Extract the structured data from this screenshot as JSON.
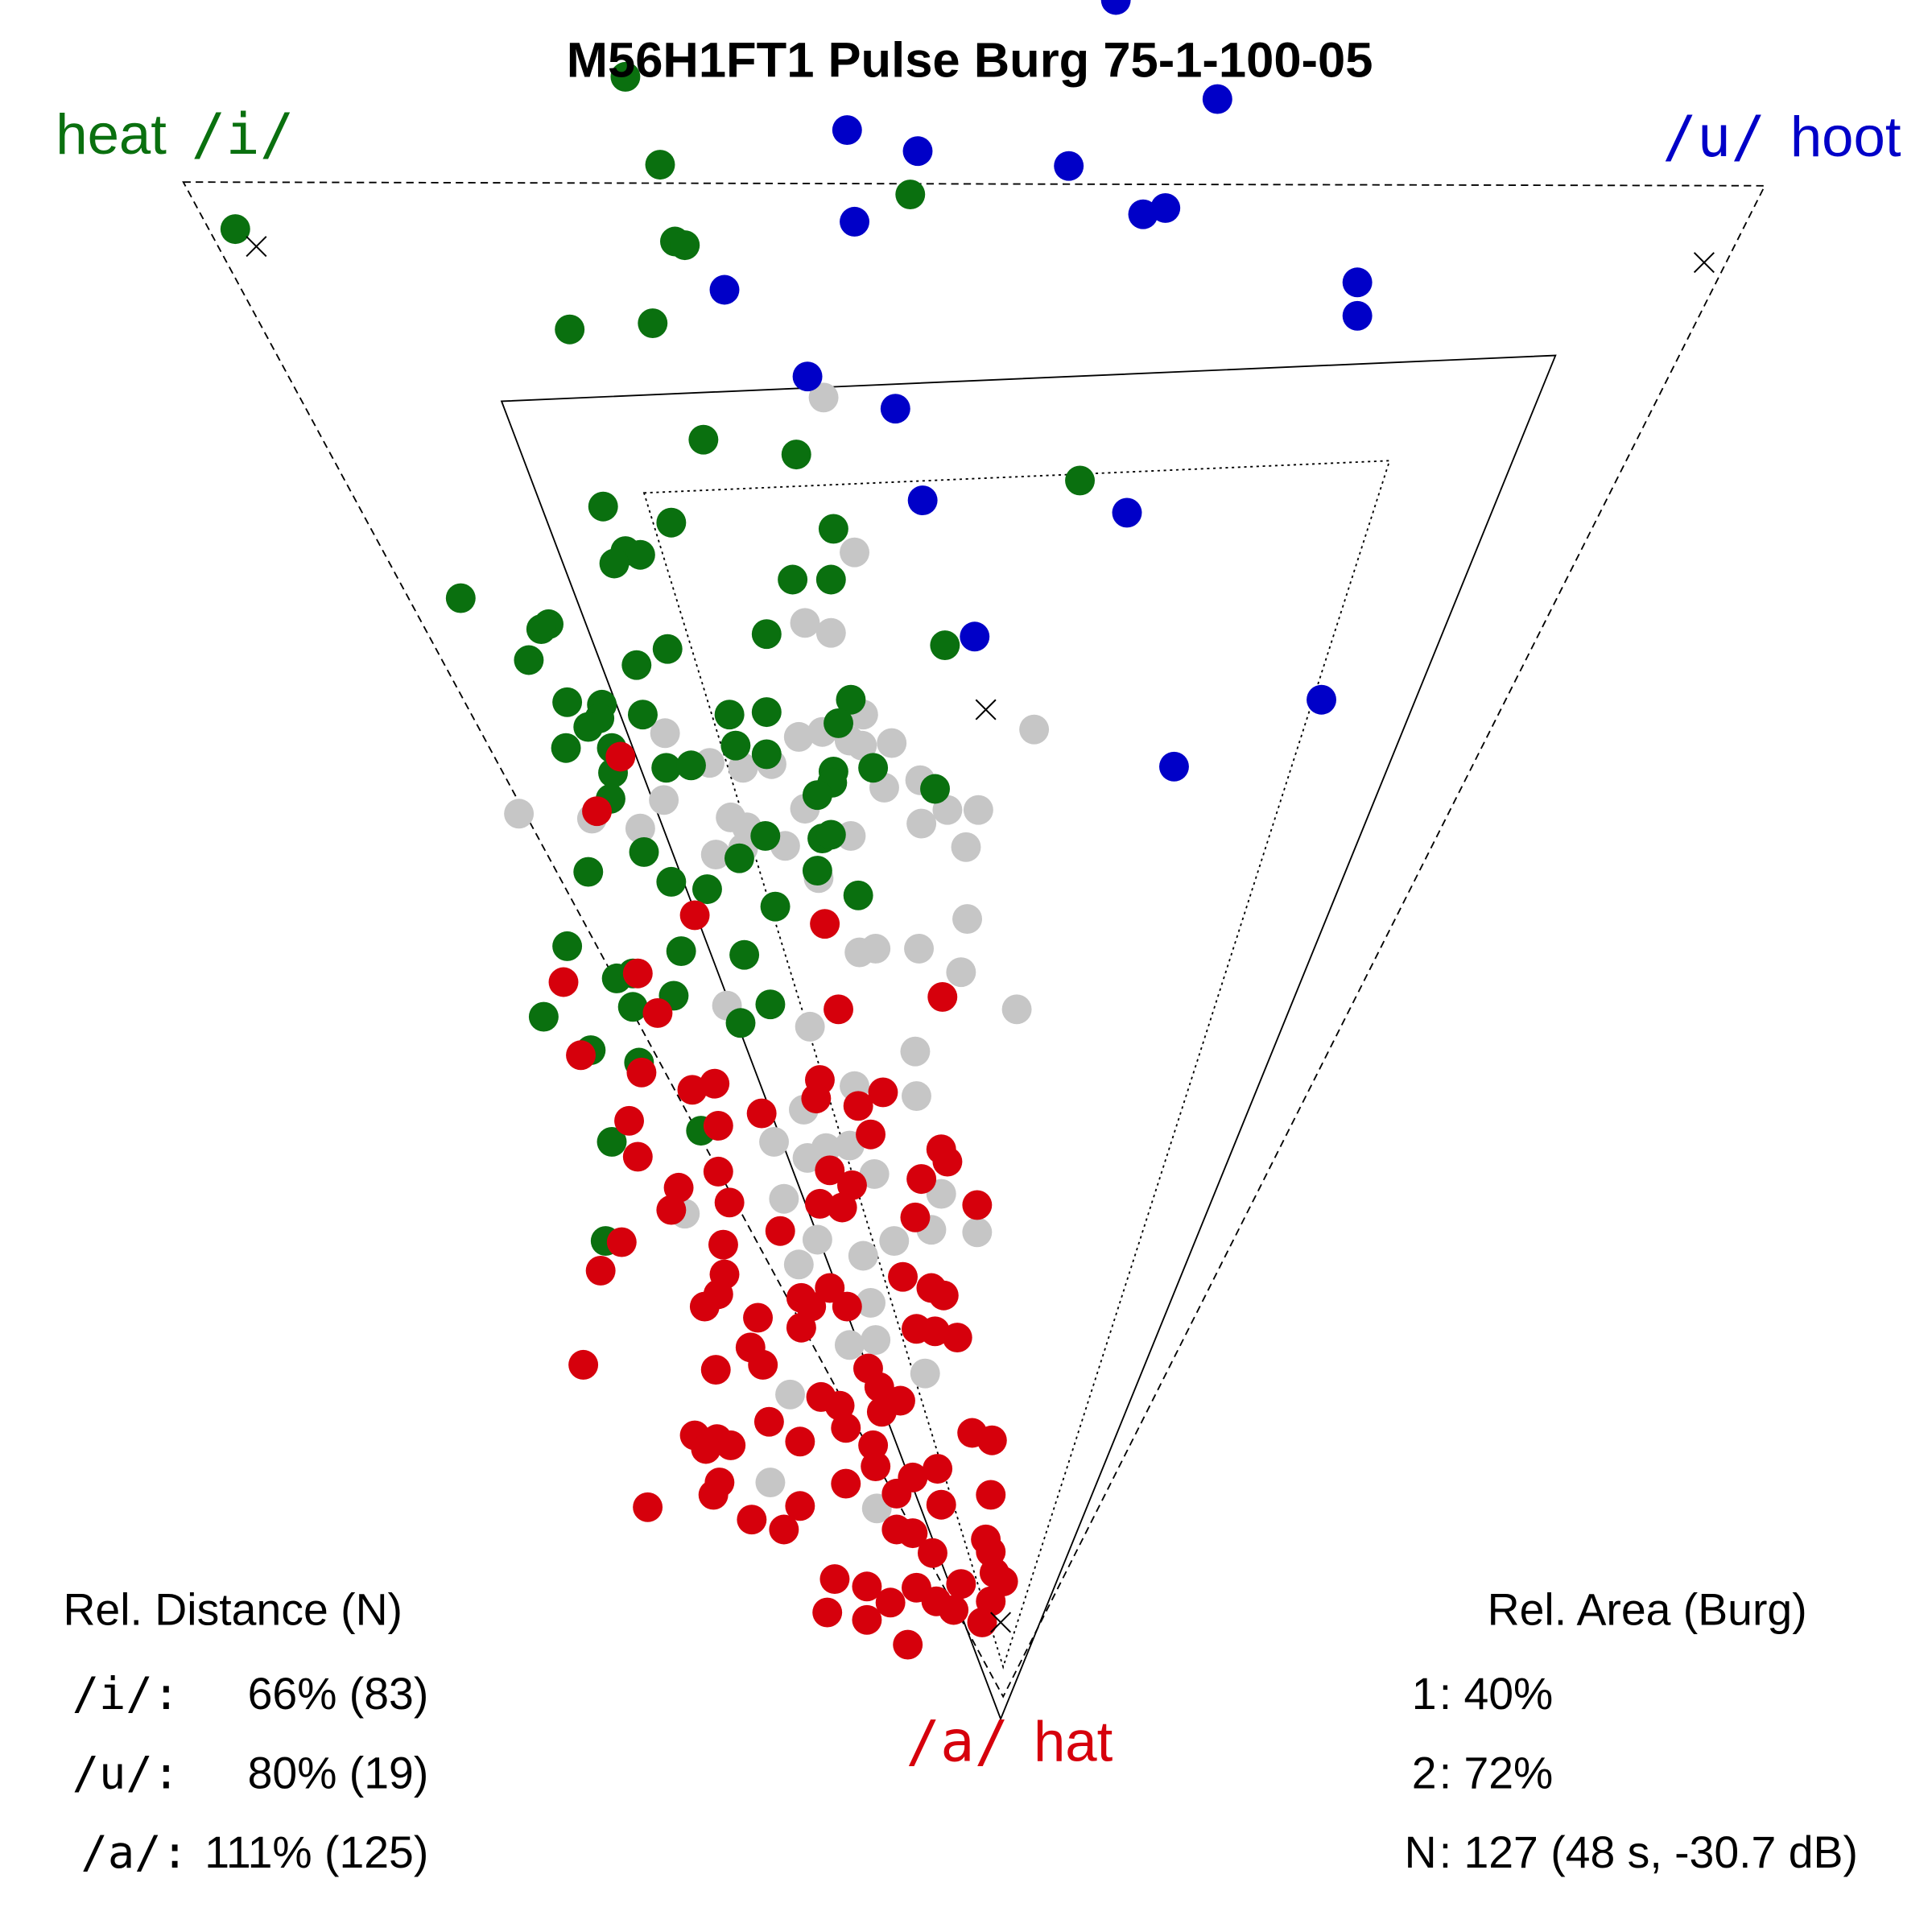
{
  "chart_data": {
    "type": "scatter",
    "title": "M56H1FT1 Pulse Burg 75-1-100-05",
    "xlim": [
      0,
      1560
    ],
    "ylim": [
      0,
      1560
    ],
    "units_note": "plot units (no axes shown)",
    "corner_labels": {
      "i": {
        "symbol": "/i/",
        "word": "heat"
      },
      "u": {
        "symbol": "/u/",
        "word": "hoot"
      },
      "a": {
        "symbol": "/a/",
        "word": "hat"
      }
    },
    "colors": {
      "i": "#0a700f",
      "u": "#0000c8",
      "a": "#d6000c",
      "other": "#c6c6c6"
    },
    "triangles": {
      "reference_dashed": [
        [
          148,
          147
        ],
        [
          1425,
          150
        ],
        [
          810,
          1370
        ]
      ],
      "area_1_solid": [
        [
          405,
          324
        ],
        [
          1256,
          287
        ],
        [
          808,
          1388
        ]
      ],
      "area_2_dotted": [
        [
          520,
          398
        ],
        [
          1122,
          372
        ],
        [
          810,
          1346
        ]
      ]
    },
    "targets": [
      [
        207,
        199
      ],
      [
        1376,
        212
      ],
      [
        796,
        573
      ],
      [
        808,
        1310
      ]
    ],
    "series": [
      {
        "name": "other",
        "color": "#c6c6c6",
        "points": [
          [
            665,
            321
          ],
          [
            690,
            446
          ],
          [
            650,
            503
          ],
          [
            671,
            511
          ],
          [
            537,
            592
          ],
          [
            573,
            616
          ],
          [
            600,
            620
          ],
          [
            623,
            617
          ],
          [
            645,
            595
          ],
          [
            664,
            591
          ],
          [
            697,
            577
          ],
          [
            720,
            600
          ],
          [
            835,
            589
          ],
          [
            696,
            602
          ],
          [
            686,
            598
          ],
          [
            419,
            657
          ],
          [
            478,
            661
          ],
          [
            517,
            669
          ],
          [
            536,
            646
          ],
          [
            590,
            660
          ],
          [
            603,
            668
          ],
          [
            578,
            690
          ],
          [
            600,
            685
          ],
          [
            634,
            683
          ],
          [
            650,
            653
          ],
          [
            687,
            675
          ],
          [
            714,
            636
          ],
          [
            743,
            630
          ],
          [
            765,
            654
          ],
          [
            790,
            654
          ],
          [
            744,
            665
          ],
          [
            780,
            684
          ],
          [
            661,
            709
          ],
          [
            781,
            742
          ],
          [
            707,
            766
          ],
          [
            694,
            769
          ],
          [
            742,
            766
          ],
          [
            776,
            785
          ],
          [
            821,
            815
          ],
          [
            587,
            812
          ],
          [
            654,
            829
          ],
          [
            739,
            849
          ],
          [
            690,
            877
          ],
          [
            740,
            885
          ],
          [
            649,
            896
          ],
          [
            625,
            922
          ],
          [
            667,
            927
          ],
          [
            686,
            925
          ],
          [
            652,
            935
          ],
          [
            706,
            948
          ],
          [
            760,
            964
          ],
          [
            633,
            968
          ],
          [
            553,
            980
          ],
          [
            752,
            993
          ],
          [
            789,
            995
          ],
          [
            722,
            1002
          ],
          [
            660,
            1001
          ],
          [
            645,
            1021
          ],
          [
            697,
            1014
          ],
          [
            703,
            1052
          ],
          [
            686,
            1086
          ],
          [
            707,
            1082
          ],
          [
            747,
            1109
          ],
          [
            638,
            1126
          ],
          [
            622,
            1197
          ],
          [
            708,
            1218
          ]
        ]
      },
      {
        "name": "/i/",
        "color": "#0a700f",
        "points": [
          [
            505,
            62
          ],
          [
            533,
            133
          ],
          [
            735,
            157
          ],
          [
            190,
            185
          ],
          [
            545,
            195
          ],
          [
            553,
            198
          ],
          [
            460,
            266
          ],
          [
            527,
            261
          ],
          [
            568,
            355
          ],
          [
            643,
            367
          ],
          [
            872,
            388
          ],
          [
            487,
            409
          ],
          [
            542,
            422
          ],
          [
            673,
            427
          ],
          [
            505,
            445
          ],
          [
            517,
            448
          ],
          [
            496,
            455
          ],
          [
            640,
            468
          ],
          [
            671,
            468
          ],
          [
            372,
            483
          ],
          [
            443,
            504
          ],
          [
            437,
            508
          ],
          [
            619,
            512
          ],
          [
            539,
            524
          ],
          [
            763,
            521
          ],
          [
            514,
            537
          ],
          [
            427,
            533
          ],
          [
            458,
            567
          ],
          [
            486,
            569
          ],
          [
            484,
            580
          ],
          [
            475,
            587
          ],
          [
            519,
            577
          ],
          [
            589,
            577
          ],
          [
            619,
            575
          ],
          [
            687,
            565
          ],
          [
            677,
            584
          ],
          [
            457,
            604
          ],
          [
            494,
            604
          ],
          [
            594,
            602
          ],
          [
            619,
            609
          ],
          [
            538,
            620
          ],
          [
            558,
            618
          ],
          [
            495,
            624
          ],
          [
            673,
            623
          ],
          [
            705,
            620
          ],
          [
            672,
            632
          ],
          [
            660,
            642
          ],
          [
            755,
            637
          ],
          [
            493,
            645
          ],
          [
            618,
            675
          ],
          [
            664,
            677
          ],
          [
            671,
            674
          ],
          [
            520,
            688
          ],
          [
            597,
            693
          ],
          [
            475,
            704
          ],
          [
            660,
            703
          ],
          [
            542,
            712
          ],
          [
            571,
            718
          ],
          [
            693,
            723
          ],
          [
            626,
            732
          ],
          [
            458,
            764
          ],
          [
            550,
            768
          ],
          [
            601,
            771
          ],
          [
            498,
            790
          ],
          [
            511,
            786
          ],
          [
            544,
            804
          ],
          [
            511,
            813
          ],
          [
            622,
            811
          ],
          [
            439,
            821
          ],
          [
            598,
            826
          ],
          [
            477,
            848
          ],
          [
            516,
            858
          ],
          [
            566,
            913
          ],
          [
            494,
            922
          ],
          [
            489,
            1002
          ]
        ]
      },
      {
        "name": "/u/",
        "color": "#0000c8",
        "points": [
          [
            901,
            0
          ],
          [
            983,
            80
          ],
          [
            684,
            105
          ],
          [
            741,
            122
          ],
          [
            863,
            134
          ],
          [
            923,
            173
          ],
          [
            941,
            168
          ],
          [
            690,
            179
          ],
          [
            585,
            234
          ],
          [
            1096,
            228
          ],
          [
            1096,
            255
          ],
          [
            652,
            304
          ],
          [
            723,
            330
          ],
          [
            745,
            404
          ],
          [
            910,
            414
          ],
          [
            787,
            514
          ],
          [
            1067,
            565
          ],
          [
            948,
            619
          ]
        ]
      },
      {
        "name": "/a/",
        "color": "#d6000c",
        "points": [
          [
            501,
            611
          ],
          [
            482,
            655
          ],
          [
            561,
            739
          ],
          [
            666,
            746
          ],
          [
            455,
            793
          ],
          [
            515,
            786
          ],
          [
            531,
            818
          ],
          [
            677,
            815
          ],
          [
            761,
            805
          ],
          [
            469,
            852
          ],
          [
            518,
            866
          ],
          [
            559,
            880
          ],
          [
            577,
            875
          ],
          [
            662,
            872
          ],
          [
            659,
            887
          ],
          [
            713,
            882
          ],
          [
            693,
            893
          ],
          [
            615,
            899
          ],
          [
            508,
            905
          ],
          [
            580,
            909
          ],
          [
            703,
            916
          ],
          [
            515,
            934
          ],
          [
            760,
            928
          ],
          [
            765,
            938
          ],
          [
            580,
            946
          ],
          [
            670,
            945
          ],
          [
            744,
            952
          ],
          [
            548,
            959
          ],
          [
            688,
            957
          ],
          [
            662,
            972
          ],
          [
            589,
            971
          ],
          [
            542,
            977
          ],
          [
            680,
            975
          ],
          [
            789,
            973
          ],
          [
            739,
            983
          ],
          [
            630,
            994
          ],
          [
            502,
            1003
          ],
          [
            584,
            1005
          ],
          [
            485,
            1026
          ],
          [
            585,
            1029
          ],
          [
            729,
            1031
          ],
          [
            580,
            1045
          ],
          [
            569,
            1055
          ],
          [
            752,
            1040
          ],
          [
            762,
            1046
          ],
          [
            647,
            1048
          ],
          [
            655,
            1055
          ],
          [
            670,
            1040
          ],
          [
            684,
            1055
          ],
          [
            612,
            1064
          ],
          [
            647,
            1072
          ],
          [
            740,
            1073
          ],
          [
            755,
            1075
          ],
          [
            773,
            1080
          ],
          [
            606,
            1088
          ],
          [
            616,
            1102
          ],
          [
            471,
            1102
          ],
          [
            578,
            1106
          ],
          [
            701,
            1105
          ],
          [
            710,
            1120
          ],
          [
            727,
            1131
          ],
          [
            663,
            1128
          ],
          [
            678,
            1135
          ],
          [
            712,
            1140
          ],
          [
            621,
            1148
          ],
          [
            683,
            1153
          ],
          [
            561,
            1159
          ],
          [
            579,
            1162
          ],
          [
            590,
            1167
          ],
          [
            570,
            1170
          ],
          [
            705,
            1167
          ],
          [
            785,
            1157
          ],
          [
            801,
            1163
          ],
          [
            646,
            1164
          ],
          [
            707,
            1184
          ],
          [
            581,
            1197
          ],
          [
            576,
            1207
          ],
          [
            737,
            1193
          ],
          [
            757,
            1186
          ],
          [
            683,
            1198
          ],
          [
            724,
            1206
          ],
          [
            800,
            1207
          ],
          [
            646,
            1216
          ],
          [
            523,
            1217
          ],
          [
            607,
            1227
          ],
          [
            633,
            1235
          ],
          [
            760,
            1215
          ],
          [
            724,
            1235
          ],
          [
            737,
            1238
          ],
          [
            796,
            1243
          ],
          [
            753,
            1254
          ],
          [
            800,
            1253
          ],
          [
            674,
            1275
          ],
          [
            700,
            1281
          ],
          [
            719,
            1294
          ],
          [
            740,
            1282
          ],
          [
            776,
            1279
          ],
          [
            803,
            1270
          ],
          [
            810,
            1277
          ],
          [
            800,
            1293
          ],
          [
            770,
            1300
          ],
          [
            793,
            1310
          ],
          [
            668,
            1302
          ],
          [
            700,
            1308
          ],
          [
            733,
            1328
          ],
          [
            756,
            1293
          ]
        ]
      }
    ],
    "rel_distance": {
      "title": "Rel. Distance (N)",
      "rows": [
        {
          "label": "/i/:",
          "value": "66% (83)"
        },
        {
          "label": "/u/:",
          "value": "80% (19)"
        },
        {
          "label": "/a/:",
          "value": "111% (125)"
        }
      ]
    },
    "rel_area": {
      "title": "Rel. Area (Burg)",
      "rows": [
        {
          "label": "1",
          "value": ": 40%"
        },
        {
          "label": "2",
          "value": ": 72%"
        },
        {
          "label": "N",
          "value": ": 127 (48 s, -30.7 dB)"
        }
      ]
    }
  }
}
